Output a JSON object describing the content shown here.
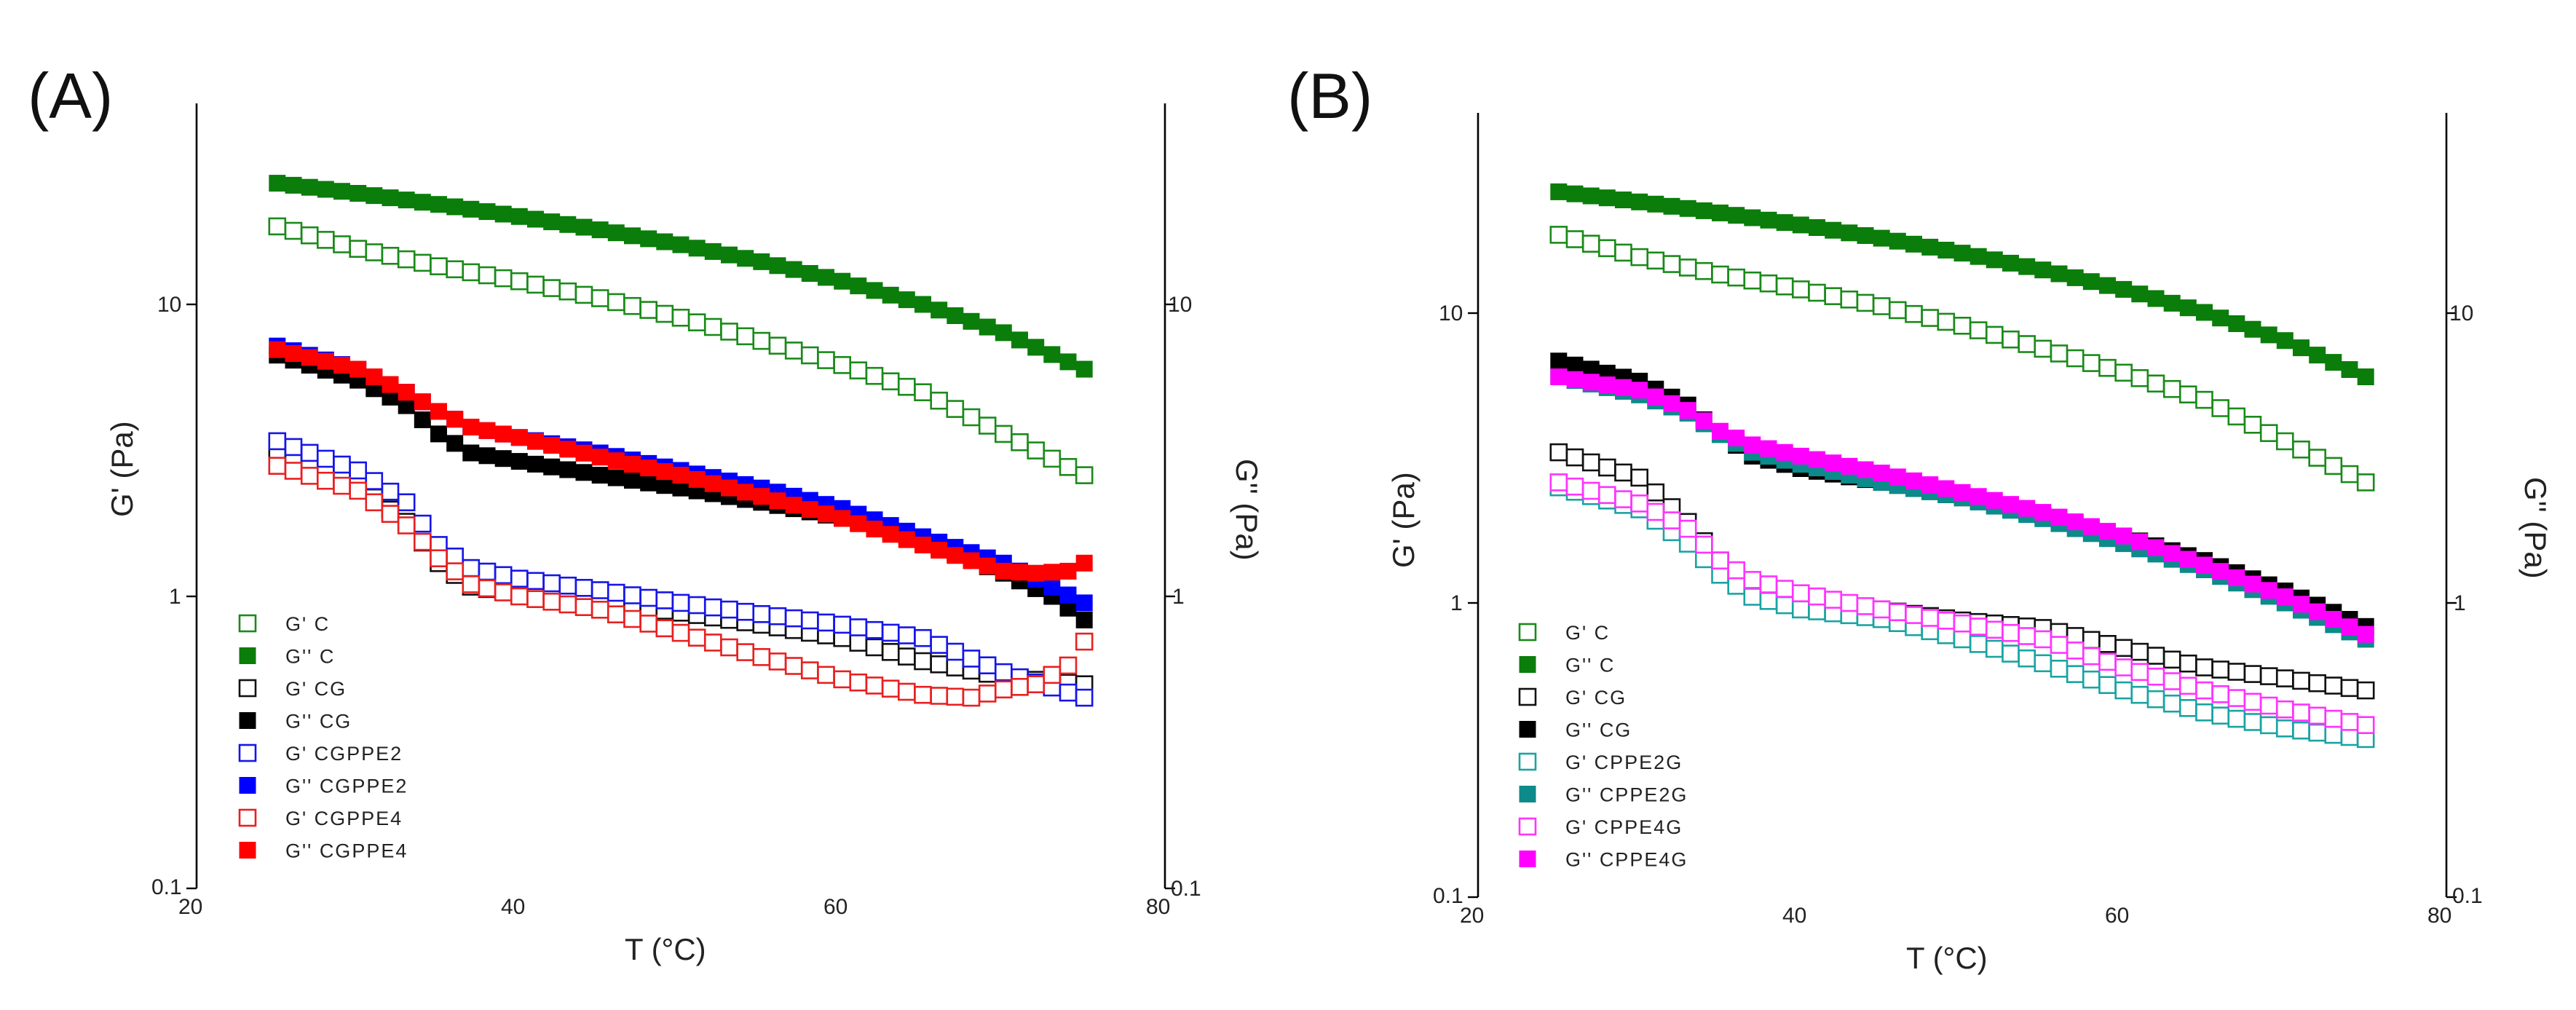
{
  "chart_data": [
    {
      "panel_label": "(A)",
      "type": "scatter",
      "xlabel": "T (°C)",
      "ylabel": "G' (Pa)",
      "y2label": "G'' (Pa)",
      "xlim": [
        20,
        80
      ],
      "ylim": [
        0.1,
        50
      ],
      "yscale": "log",
      "x_ticks": [
        "20",
        "40",
        "60",
        "80"
      ],
      "y_ticks": [
        "0.1",
        "1",
        "10"
      ],
      "y2_ticks": [
        "0.1",
        "1",
        "10"
      ],
      "legend_position": "bottom-left",
      "series": [
        {
          "name": "G' C",
          "color": "#1a8a1a",
          "filled": false,
          "points": [
            [
              25,
              18.5
            ],
            [
              30,
              15.5
            ],
            [
              35,
              13.5
            ],
            [
              40,
              12
            ],
            [
              45,
              10.5
            ],
            [
              50,
              9
            ],
            [
              55,
              7.5
            ],
            [
              60,
              6.2
            ],
            [
              65,
              5
            ],
            [
              70,
              3.6
            ],
            [
              75,
              2.6
            ]
          ]
        },
        {
          "name": "G'' C",
          "color": "#0a7d0a",
          "filled": true,
          "points": [
            [
              25,
              26
            ],
            [
              30,
              24
            ],
            [
              35,
              22
            ],
            [
              40,
              20
            ],
            [
              45,
              18
            ],
            [
              50,
              16
            ],
            [
              55,
              14
            ],
            [
              60,
              12
            ],
            [
              65,
              10
            ],
            [
              70,
              8
            ],
            [
              75,
              6
            ]
          ]
        },
        {
          "name": "G' CG",
          "color": "#111111",
          "filled": false,
          "points": [
            [
              25,
              3
            ],
            [
              30,
              2.4
            ],
            [
              33,
              1.8
            ],
            [
              35,
              1.3
            ],
            [
              37,
              1.08
            ],
            [
              40,
              1.02
            ],
            [
              45,
              0.95
            ],
            [
              50,
              0.88
            ],
            [
              55,
              0.8
            ],
            [
              60,
              0.72
            ],
            [
              65,
              0.6
            ],
            [
              70,
              0.53
            ],
            [
              75,
              0.5
            ]
          ]
        },
        {
          "name": "G'' CG",
          "color": "#000000",
          "filled": true,
          "points": [
            [
              25,
              6.7
            ],
            [
              30,
              5.5
            ],
            [
              33,
              4.5
            ],
            [
              35,
              3.6
            ],
            [
              37,
              3.1
            ],
            [
              40,
              2.9
            ],
            [
              45,
              2.6
            ],
            [
              50,
              2.35
            ],
            [
              55,
              2.1
            ],
            [
              60,
              1.85
            ],
            [
              65,
              1.55
            ],
            [
              70,
              1.2
            ],
            [
              73,
              1
            ],
            [
              75,
              0.83
            ]
          ]
        },
        {
          "name": "G' CGPPE2",
          "color": "#1515e8",
          "filled": false,
          "points": [
            [
              25,
              3.4
            ],
            [
              30,
              2.7
            ],
            [
              33,
              2.1
            ],
            [
              35,
              1.5
            ],
            [
              37,
              1.25
            ],
            [
              40,
              1.15
            ],
            [
              45,
              1.05
            ],
            [
              50,
              0.95
            ],
            [
              55,
              0.87
            ],
            [
              60,
              0.8
            ],
            [
              65,
              0.72
            ],
            [
              70,
              0.55
            ],
            [
              75,
              0.45
            ]
          ]
        },
        {
          "name": "G'' CGPPE2",
          "color": "#0000ff",
          "filled": true,
          "points": [
            [
              25,
              7.2
            ],
            [
              30,
              6
            ],
            [
              33,
              5
            ],
            [
              35,
              4.3
            ],
            [
              37,
              3.8
            ],
            [
              40,
              3.5
            ],
            [
              45,
              3.1
            ],
            [
              50,
              2.7
            ],
            [
              55,
              2.35
            ],
            [
              60,
              2
            ],
            [
              65,
              1.6
            ],
            [
              70,
              1.3
            ],
            [
              75,
              0.95
            ]
          ]
        },
        {
          "name": "G' CGPPE4",
          "color": "#e82020",
          "filled": false,
          "points": [
            [
              25,
              2.8
            ],
            [
              30,
              2.3
            ],
            [
              33,
              1.75
            ],
            [
              35,
              1.35
            ],
            [
              37,
              1.1
            ],
            [
              40,
              1
            ],
            [
              45,
              0.9
            ],
            [
              50,
              0.75
            ],
            [
              55,
              0.62
            ],
            [
              60,
              0.52
            ],
            [
              65,
              0.46
            ],
            [
              68,
              0.45
            ],
            [
              70,
              0.48
            ],
            [
              72,
              0.5
            ],
            [
              74,
              0.58
            ],
            [
              75,
              0.7
            ]
          ]
        },
        {
          "name": "G'' CGPPE4",
          "color": "#ff0000",
          "filled": true,
          "points": [
            [
              25,
              7
            ],
            [
              30,
              6
            ],
            [
              33,
              5
            ],
            [
              35,
              4.3
            ],
            [
              37,
              3.8
            ],
            [
              40,
              3.5
            ],
            [
              45,
              3
            ],
            [
              50,
              2.6
            ],
            [
              55,
              2.2
            ],
            [
              60,
              1.85
            ],
            [
              65,
              1.5
            ],
            [
              70,
              1.22
            ],
            [
              72,
              1.2
            ],
            [
              74,
              1.22
            ],
            [
              75,
              1.3
            ]
          ]
        }
      ]
    },
    {
      "panel_label": "(B)",
      "type": "scatter",
      "xlabel": "T (°C)",
      "ylabel": "G' (Pa)",
      "y2label": "G'' (Pa)",
      "xlim": [
        20,
        80
      ],
      "ylim": [
        0.1,
        50
      ],
      "yscale": "log",
      "x_ticks": [
        "20",
        "40",
        "60",
        "80"
      ],
      "y_ticks": [
        "0.1",
        "1",
        "10"
      ],
      "y2_ticks": [
        "0.1",
        "1",
        "10"
      ],
      "legend_position": "bottom-left",
      "series": [
        {
          "name": "G' C",
          "color": "#1a8a1a",
          "filled": false,
          "points": [
            [
              25,
              18.5
            ],
            [
              30,
              15.5
            ],
            [
              35,
              13.5
            ],
            [
              40,
              12
            ],
            [
              45,
              10.5
            ],
            [
              50,
              9
            ],
            [
              55,
              7.5
            ],
            [
              60,
              6.2
            ],
            [
              65,
              5
            ],
            [
              70,
              3.6
            ],
            [
              75,
              2.6
            ]
          ]
        },
        {
          "name": "G'' C",
          "color": "#0a7d0a",
          "filled": true,
          "points": [
            [
              25,
              26
            ],
            [
              30,
              24
            ],
            [
              35,
              22
            ],
            [
              40,
              20
            ],
            [
              45,
              18
            ],
            [
              50,
              16
            ],
            [
              55,
              14
            ],
            [
              60,
              12
            ],
            [
              65,
              10
            ],
            [
              70,
              8
            ],
            [
              75,
              6
            ]
          ]
        },
        {
          "name": "G' CG",
          "color": "#111111",
          "filled": false,
          "points": [
            [
              25,
              3.3
            ],
            [
              30,
              2.7
            ],
            [
              33,
              1.9
            ],
            [
              35,
              1.4
            ],
            [
              37,
              1.1
            ],
            [
              40,
              1
            ],
            [
              45,
              0.95
            ],
            [
              50,
              0.87
            ],
            [
              55,
              0.82
            ],
            [
              60,
              0.7
            ],
            [
              65,
              0.6
            ],
            [
              70,
              0.55
            ],
            [
              75,
              0.5
            ]
          ]
        },
        {
          "name": "G'' CG",
          "color": "#000000",
          "filled": true,
          "points": [
            [
              25,
              6.8
            ],
            [
              30,
              5.8
            ],
            [
              33,
              4.8
            ],
            [
              35,
              3.8
            ],
            [
              37,
              3.2
            ],
            [
              40,
              2.9
            ],
            [
              45,
              2.6
            ],
            [
              50,
              2.3
            ],
            [
              55,
              2
            ],
            [
              60,
              1.7
            ],
            [
              65,
              1.4
            ],
            [
              70,
              1.1
            ],
            [
              75,
              0.83
            ]
          ]
        },
        {
          "name": "G' CPPE2G",
          "color": "#1aa3a3",
          "filled": false,
          "points": [
            [
              25,
              2.5
            ],
            [
              30,
              2.1
            ],
            [
              33,
              1.6
            ],
            [
              35,
              1.25
            ],
            [
              37,
              1.05
            ],
            [
              40,
              0.95
            ],
            [
              45,
              0.88
            ],
            [
              50,
              0.75
            ],
            [
              55,
              0.62
            ],
            [
              60,
              0.5
            ],
            [
              65,
              0.42
            ],
            [
              70,
              0.37
            ],
            [
              75,
              0.34
            ]
          ]
        },
        {
          "name": "G'' CPPE2G",
          "color": "#0d8a8a",
          "filled": true,
          "points": [
            [
              25,
              6
            ],
            [
              30,
              5.2
            ],
            [
              33,
              4.5
            ],
            [
              35,
              3.8
            ],
            [
              37,
              3.3
            ],
            [
              40,
              3
            ],
            [
              45,
              2.6
            ],
            [
              50,
              2.3
            ],
            [
              55,
              1.95
            ],
            [
              60,
              1.6
            ],
            [
              65,
              1.3
            ],
            [
              70,
              1
            ],
            [
              75,
              0.75
            ]
          ]
        },
        {
          "name": "G' CPPE4G",
          "color": "#ff33ff",
          "filled": false,
          "points": [
            [
              25,
              2.6
            ],
            [
              30,
              2.2
            ],
            [
              33,
              1.8
            ],
            [
              35,
              1.4
            ],
            [
              37,
              1.2
            ],
            [
              40,
              1.08
            ],
            [
              45,
              0.95
            ],
            [
              50,
              0.85
            ],
            [
              55,
              0.75
            ],
            [
              60,
              0.6
            ],
            [
              65,
              0.5
            ],
            [
              70,
              0.43
            ],
            [
              75,
              0.38
            ]
          ]
        },
        {
          "name": "G'' CPPE4G",
          "color": "#ff00ff",
          "filled": true,
          "points": [
            [
              25,
              6
            ],
            [
              30,
              5.4
            ],
            [
              33,
              4.6
            ],
            [
              35,
              3.9
            ],
            [
              37,
              3.5
            ],
            [
              40,
              3.2
            ],
            [
              45,
              2.8
            ],
            [
              50,
              2.4
            ],
            [
              55,
              2.05
            ],
            [
              60,
              1.7
            ],
            [
              65,
              1.35
            ],
            [
              70,
              1.05
            ],
            [
              75,
              0.78
            ]
          ]
        }
      ]
    }
  ]
}
